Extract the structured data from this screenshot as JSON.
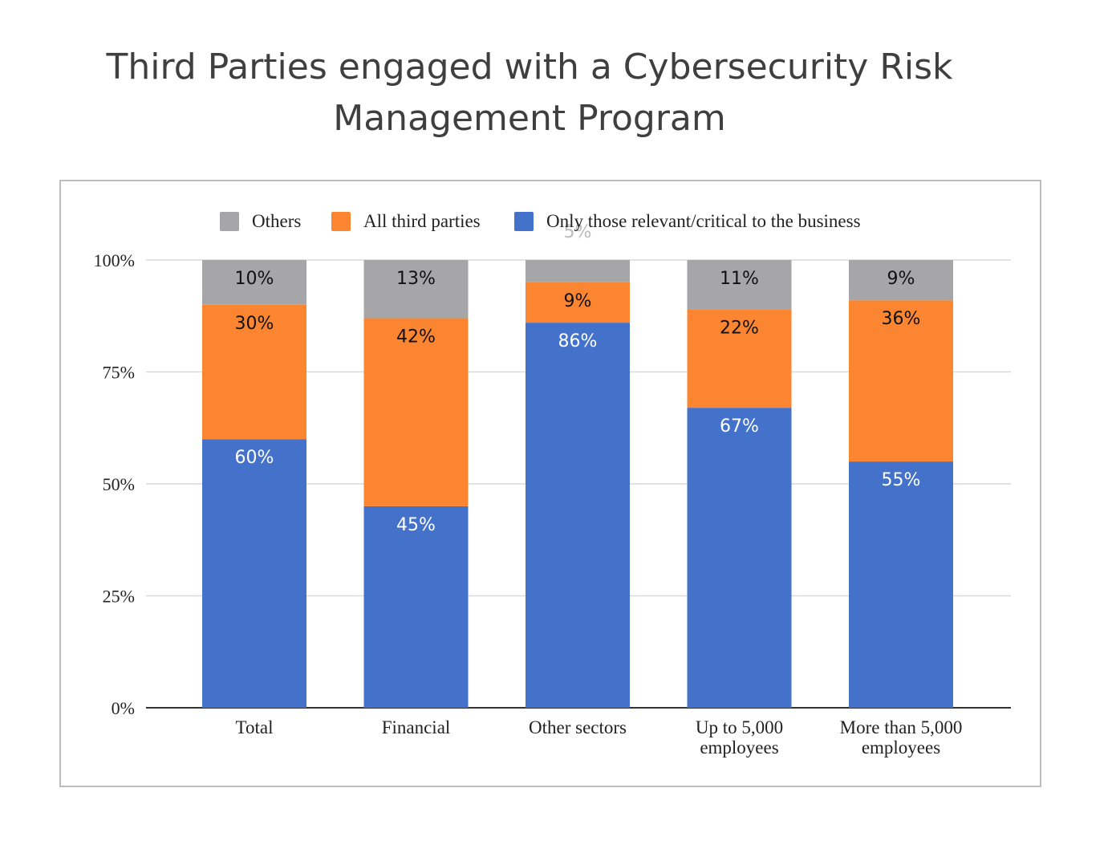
{
  "title": {
    "line1": "Third Parties engaged with a Cybersecurity Risk",
    "line2": "Management Program"
  },
  "chart_data": {
    "type": "bar",
    "stacked": true,
    "title": "Third Parties engaged with a Cybersecurity Risk Management Program",
    "categories": [
      "Total",
      "Financial",
      "Other sectors",
      "Up to 5,000 employees",
      "More than 5,000 employees"
    ],
    "category_lines": [
      [
        "Total"
      ],
      [
        "Financial"
      ],
      [
        "Other sectors"
      ],
      [
        "Up to 5,000",
        "employees"
      ],
      [
        "More than 5,000",
        "employees"
      ]
    ],
    "series": [
      {
        "name": "Only those relevant/critical to the business",
        "color": "#4472ca",
        "values": [
          60,
          45,
          86,
          67,
          55
        ],
        "labels": [
          "60%",
          "45%",
          "86%",
          "67%",
          "55%"
        ],
        "label_color": "#ffffff"
      },
      {
        "name": "All third parties",
        "color": "#fb8530",
        "values": [
          30,
          42,
          9,
          22,
          36
        ],
        "labels": [
          "30%",
          "42%",
          "9%",
          "22%",
          "36%"
        ],
        "label_color": "#111111"
      },
      {
        "name": "Others",
        "color": "#a6a6a9",
        "values": [
          10,
          13,
          5,
          11,
          9
        ],
        "labels": [
          "10%",
          "13%",
          "5%",
          "11%",
          "9%"
        ],
        "label_color": "#111111"
      }
    ],
    "legend": [
      {
        "name": "Others",
        "color": "#a6a6a9"
      },
      {
        "name": "All third parties",
        "color": "#fb8530"
      },
      {
        "name": "Only those relevant/critical to the business",
        "color": "#4472ca"
      }
    ],
    "legend_position": "top",
    "y_ticks": [
      "0%",
      "25%",
      "50%",
      "75%",
      "100%"
    ],
    "ylim": [
      0,
      100
    ],
    "grid": true,
    "xlabel": "",
    "ylabel": ""
  }
}
